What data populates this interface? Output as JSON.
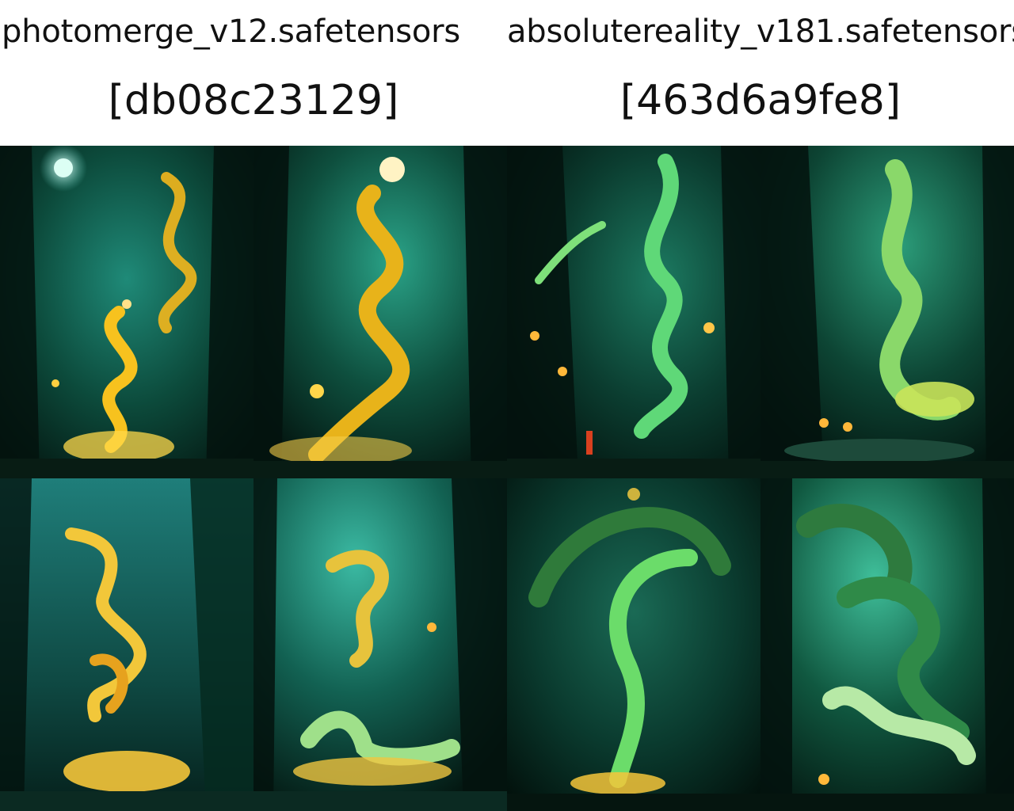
{
  "columns": [
    {
      "model_name": "photomerge_v12.safetensors",
      "model_hash": "[db08c23129]"
    },
    {
      "model_name": "absolutereality_v181.safetensors",
      "model_hash": "[463d6a9fe8]"
    }
  ],
  "tiles": [
    {
      "subject": "golden glowing serpent dragon in a misty forest"
    },
    {
      "subject": "golden serpent dragon under a moon"
    },
    {
      "subject": "green glowing serpent with lanterns"
    },
    {
      "subject": "green and gold serpent dragon by a stream"
    },
    {
      "subject": "golden dragon coiling above water"
    },
    {
      "subject": "golden dragon resting in shallow water"
    },
    {
      "subject": "green arching serpent in dark forest"
    },
    {
      "subject": "green dragon curled beneath a mossy arch"
    }
  ],
  "colors": {
    "forest_dark": "#06251c",
    "forest_mid": "#0f5a45",
    "forest_light": "#3fbf9a",
    "gold_glow": "#f7c21e",
    "green_glow": "#7dff8a"
  }
}
